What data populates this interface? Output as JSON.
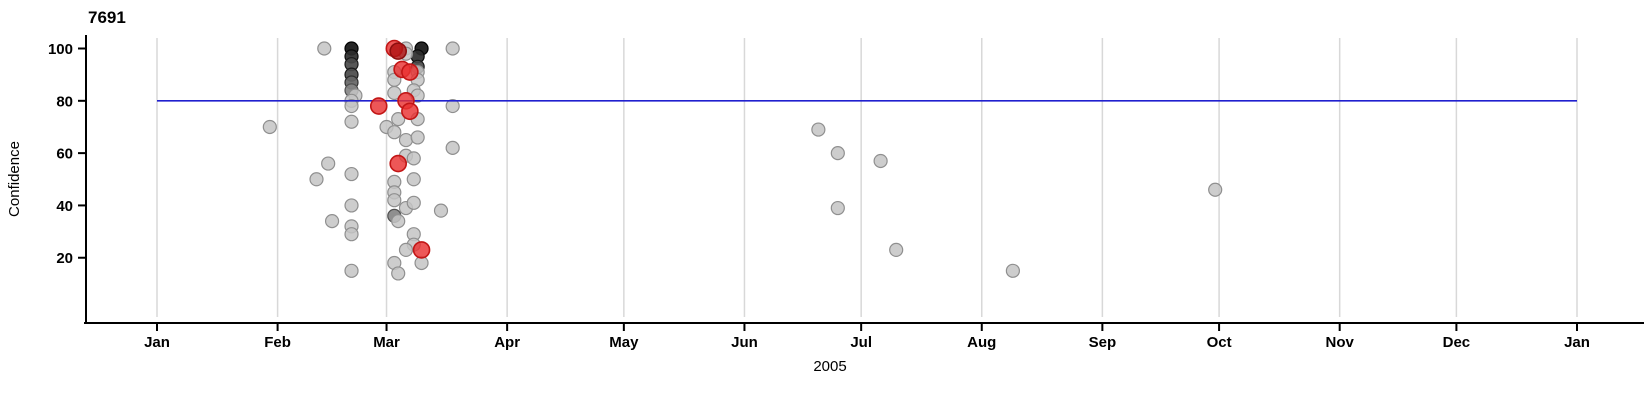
{
  "chart_data": {
    "type": "scatter",
    "title": "7691",
    "xlabel": "2005",
    "ylabel": "Confidence",
    "ylim": [
      0,
      105
    ],
    "y_ticks": [
      20,
      40,
      60,
      80,
      100
    ],
    "x_ticks": [
      {
        "label": "Jan",
        "date": "2005-01-01"
      },
      {
        "label": "Feb",
        "date": "2005-02-01"
      },
      {
        "label": "Mar",
        "date": "2005-03-01"
      },
      {
        "label": "Apr",
        "date": "2005-04-01"
      },
      {
        "label": "May",
        "date": "2005-05-01"
      },
      {
        "label": "Jun",
        "date": "2005-06-01"
      },
      {
        "label": "Jul",
        "date": "2005-07-01"
      },
      {
        "label": "Aug",
        "date": "2005-08-01"
      },
      {
        "label": "Sep",
        "date": "2005-09-01"
      },
      {
        "label": "Oct",
        "date": "2005-10-01"
      },
      {
        "label": "Nov",
        "date": "2005-11-01"
      },
      {
        "label": "Dec",
        "date": "2005-12-01"
      },
      {
        "label": "Jan",
        "date": "2006-01-01"
      }
    ],
    "grid": true,
    "legend": "none",
    "reference_line": {
      "y": 80,
      "color": "#2020cf",
      "span": [
        "2005-01-01",
        "2006-01-01"
      ]
    },
    "palette": {
      "gray": "#c4c4c4",
      "gray_stroke": "#8f8f8f",
      "black": "#141414",
      "black_stroke": "#000000",
      "dark1": "#2e2e2e",
      "dark1_stroke": "#0a0a0a",
      "dark2": "#4a4a4a",
      "dark2_stroke": "#1a1a1a",
      "dark3": "#666666",
      "dark3_stroke": "#2f2f2f",
      "dark4": "#868686",
      "dark4_stroke": "#4f4f4f",
      "red": "#e93232",
      "red_stroke": "#c21616",
      "red_dark": "#b01414",
      "red_dark_stroke": "#8d0f0f",
      "gridline": "#d8d8d8",
      "axis": "#000000"
    },
    "points": [
      [
        "2005-01-30",
        70,
        "gray"
      ],
      [
        "2005-02-11",
        50,
        "gray"
      ],
      [
        "2005-02-13",
        100,
        "gray"
      ],
      [
        "2005-02-14",
        56,
        "gray"
      ],
      [
        "2005-02-15",
        34,
        "gray"
      ],
      [
        "2005-02-20",
        72,
        "gray"
      ],
      [
        "2005-02-20",
        52,
        "gray"
      ],
      [
        "2005-02-20",
        40,
        "gray"
      ],
      [
        "2005-02-20",
        32,
        "gray"
      ],
      [
        "2005-02-20",
        29,
        "gray"
      ],
      [
        "2005-02-20",
        15,
        "gray"
      ],
      [
        "2005-02-20",
        100,
        "black"
      ],
      [
        "2005-02-20",
        97,
        "dark1"
      ],
      [
        "2005-02-20",
        94,
        "dark2"
      ],
      [
        "2005-02-20",
        90,
        "dark2"
      ],
      [
        "2005-02-20",
        87,
        "dark3"
      ],
      [
        "2005-02-20",
        84,
        "dark4"
      ],
      [
        "2005-02-21",
        82,
        "gray"
      ],
      [
        "2005-02-20",
        80,
        "gray"
      ],
      [
        "2005-02-20",
        78,
        "gray"
      ],
      [
        "2005-03-10",
        100,
        "black"
      ],
      [
        "2005-03-09",
        97,
        "dark1"
      ],
      [
        "2005-03-09",
        93,
        "dark2"
      ],
      [
        "2005-03-06",
        100,
        "gray"
      ],
      [
        "2005-03-06",
        98,
        "gray"
      ],
      [
        "2005-03-18",
        100,
        "gray"
      ],
      [
        "2005-03-03",
        91,
        "gray"
      ],
      [
        "2005-03-09",
        91,
        "gray"
      ],
      [
        "2005-03-03",
        88,
        "gray"
      ],
      [
        "2005-03-09",
        88,
        "gray"
      ],
      [
        "2005-03-08",
        84,
        "gray"
      ],
      [
        "2005-03-03",
        83,
        "gray"
      ],
      [
        "2005-03-09",
        82,
        "gray"
      ],
      [
        "2005-03-18",
        78,
        "gray"
      ],
      [
        "2005-03-04",
        73,
        "gray"
      ],
      [
        "2005-03-09",
        73,
        "gray"
      ],
      [
        "2005-03-01",
        70,
        "gray"
      ],
      [
        "2005-03-03",
        68,
        "gray"
      ],
      [
        "2005-03-06",
        65,
        "gray"
      ],
      [
        "2005-03-09",
        66,
        "gray"
      ],
      [
        "2005-03-06",
        59,
        "gray"
      ],
      [
        "2005-03-08",
        58,
        "gray"
      ],
      [
        "2005-03-18",
        62,
        "gray"
      ],
      [
        "2005-03-03",
        49,
        "gray"
      ],
      [
        "2005-03-08",
        50,
        "gray"
      ],
      [
        "2005-03-03",
        45,
        "gray"
      ],
      [
        "2005-03-03",
        42,
        "gray"
      ],
      [
        "2005-03-06",
        39,
        "gray"
      ],
      [
        "2005-03-08",
        41,
        "gray"
      ],
      [
        "2005-03-03",
        36,
        "dark4"
      ],
      [
        "2005-03-04",
        34,
        "gray"
      ],
      [
        "2005-03-15",
        38,
        "gray"
      ],
      [
        "2005-03-08",
        29,
        "gray"
      ],
      [
        "2005-03-08",
        25,
        "gray"
      ],
      [
        "2005-03-06",
        23,
        "gray"
      ],
      [
        "2005-03-03",
        18,
        "gray"
      ],
      [
        "2005-03-04",
        14,
        "gray"
      ],
      [
        "2005-03-10",
        18,
        "gray"
      ],
      [
        "2005-06-20",
        69,
        "gray"
      ],
      [
        "2005-06-25",
        60,
        "gray"
      ],
      [
        "2005-07-06",
        57,
        "gray"
      ],
      [
        "2005-06-25",
        39,
        "gray"
      ],
      [
        "2005-07-10",
        23,
        "gray"
      ],
      [
        "2005-08-09",
        15,
        "gray"
      ],
      [
        "2005-09-30",
        46,
        "gray"
      ],
      [
        "2005-03-03",
        100,
        "red"
      ],
      [
        "2005-03-04",
        99,
        "red_dark"
      ],
      [
        "2005-03-05",
        92,
        "red"
      ],
      [
        "2005-03-07",
        91,
        "red"
      ],
      [
        "2005-02-27",
        78,
        "red"
      ],
      [
        "2005-03-06",
        80,
        "red"
      ],
      [
        "2005-03-07",
        76,
        "red"
      ],
      [
        "2005-03-04",
        56,
        "red"
      ],
      [
        "2005-03-10",
        23,
        "red"
      ]
    ]
  }
}
